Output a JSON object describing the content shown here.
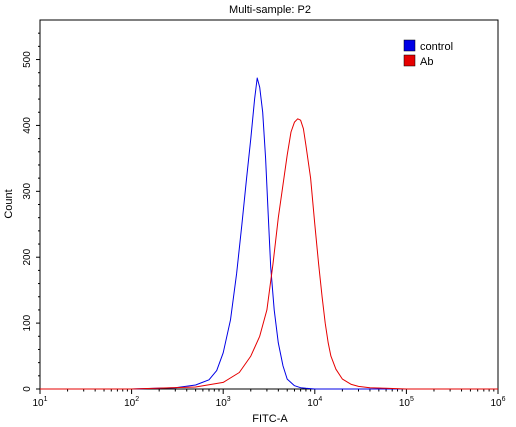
{
  "chart_data": {
    "type": "line",
    "title": "Multi-sample: P2",
    "xlabel": "FITC-A",
    "ylabel": "Count",
    "x_scale": "log10",
    "xlim": [
      10,
      1000000
    ],
    "ylim": [
      0,
      560
    ],
    "x_ticks": [
      {
        "value": 10,
        "base": "10",
        "exp": "1"
      },
      {
        "value": 100,
        "base": "10",
        "exp": "2"
      },
      {
        "value": 1000,
        "base": "10",
        "exp": "3"
      },
      {
        "value": 10000,
        "base": "10",
        "exp": "4"
      },
      {
        "value": 100000,
        "base": "10",
        "exp": "5"
      },
      {
        "value": 1000000,
        "base": "10",
        "exp": "6"
      }
    ],
    "y_ticks": [
      0,
      100,
      200,
      300,
      400,
      500
    ],
    "grid": false,
    "legend_position": "top-right",
    "series": [
      {
        "name": "control",
        "color": "#0000e6",
        "x": [
          10,
          100,
          300,
          500,
          700,
          850,
          1000,
          1200,
          1400,
          1600,
          1800,
          2000,
          2200,
          2350,
          2500,
          2700,
          2900,
          3100,
          3300,
          3600,
          4000,
          4500,
          5000,
          6000,
          7000,
          8000,
          10000,
          15000,
          30000,
          1000000
        ],
        "y": [
          0,
          0,
          2,
          6,
          14,
          28,
          55,
          105,
          175,
          250,
          320,
          380,
          440,
          472,
          458,
          420,
          350,
          265,
          185,
          120,
          70,
          35,
          15,
          5,
          2,
          1,
          0,
          0,
          0,
          0
        ]
      },
      {
        "name": "Ab",
        "color": "#e60000",
        "x": [
          10,
          100,
          500,
          1000,
          1500,
          2000,
          2500,
          3000,
          3500,
          4000,
          4500,
          5000,
          5500,
          6000,
          6500,
          7000,
          7500,
          8000,
          9000,
          10000,
          11000,
          12000,
          13000,
          14000,
          15000,
          17000,
          20000,
          25000,
          30000,
          40000,
          60000,
          100000,
          1000000
        ],
        "y": [
          0,
          0,
          3,
          10,
          25,
          50,
          80,
          120,
          190,
          260,
          310,
          355,
          390,
          405,
          410,
          408,
          395,
          370,
          320,
          250,
          190,
          140,
          100,
          70,
          50,
          30,
          15,
          7,
          4,
          2,
          1,
          0,
          0
        ]
      }
    ]
  }
}
